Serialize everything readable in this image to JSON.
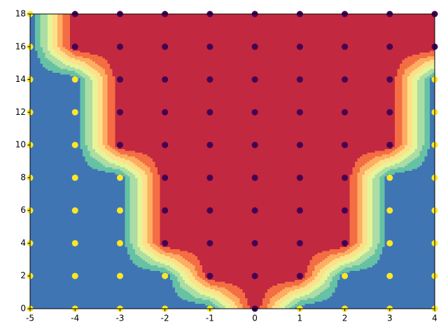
{
  "chart_data": {
    "type": "contour",
    "x": [
      -5,
      -4,
      -3,
      -2,
      -1,
      0,
      1,
      2,
      3,
      4
    ],
    "y": [
      0,
      2,
      4,
      6,
      8,
      10,
      12,
      14,
      16,
      18
    ],
    "z": [
      [
        0,
        0,
        0,
        0,
        0,
        1,
        0,
        0,
        0,
        0
      ],
      [
        0,
        0,
        0,
        0,
        1,
        1,
        1,
        0,
        0,
        0
      ],
      [
        0,
        0,
        0,
        1,
        1,
        1,
        1,
        1,
        0,
        0
      ],
      [
        0,
        0,
        0,
        1,
        1,
        1,
        1,
        1,
        0,
        0
      ],
      [
        0,
        0,
        0,
        1,
        1,
        1,
        1,
        1,
        0,
        0
      ],
      [
        0,
        0,
        1,
        1,
        1,
        1,
        1,
        1,
        1,
        0
      ],
      [
        0,
        0,
        1,
        1,
        1,
        1,
        1,
        1,
        1,
        0
      ],
      [
        0,
        0,
        1,
        1,
        1,
        1,
        1,
        1,
        1,
        0
      ],
      [
        0,
        1,
        1,
        1,
        1,
        1,
        1,
        1,
        1,
        1
      ],
      [
        0,
        1,
        1,
        1,
        1,
        1,
        1,
        1,
        1,
        1
      ]
    ],
    "levels": [
      0,
      0.125,
      0.25,
      0.375,
      0.5,
      0.625,
      0.75,
      0.875,
      1
    ],
    "level_colors": [
      "#4075b4",
      "#66c2a5",
      "#abdda4",
      "#e6f598",
      "#fee08b",
      "#fdae61",
      "#f46d43",
      "#c2283f"
    ],
    "point_colors": [
      "#fde725",
      "#440154"
    ],
    "xlim": [
      -5,
      4
    ],
    "ylim": [
      0,
      18
    ],
    "xticks": [
      -5,
      -4,
      -3,
      -2,
      -1,
      0,
      1,
      2,
      3,
      4
    ],
    "yticks": [
      0,
      2,
      4,
      6,
      8,
      10,
      12,
      14,
      16,
      18
    ]
  }
}
